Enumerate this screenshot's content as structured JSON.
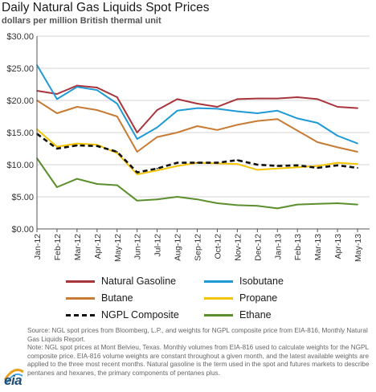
{
  "chart_data": {
    "type": "line",
    "title": "Daily Natural Gas Liquids Spot Prices",
    "subtitle": "dollars per million British thermal unit",
    "ylim": [
      0,
      30
    ],
    "yticks": [
      0,
      5,
      10,
      15,
      20,
      25,
      30
    ],
    "ytick_labels": [
      "$0.00",
      "$5.00",
      "$10.00",
      "$15.00",
      "$20.00",
      "$25.00",
      "$30.00"
    ],
    "categories": [
      "Jan-12",
      "Feb-12",
      "Mar-12",
      "Apr-12",
      "May-12",
      "Jun-12",
      "Jul-12",
      "Aug-12",
      "Sep-12",
      "Oct-12",
      "Nov-12",
      "Dec-12",
      "Jan-13",
      "Feb-13",
      "Mar-13",
      "Apr-13",
      "May-13"
    ],
    "x_end": 16.6,
    "grid": "horizontal",
    "legend_position": "bottom",
    "series": [
      {
        "name": "Natural Gasoline",
        "color": "#a8343c",
        "dash": false,
        "values": [
          21.5,
          21.0,
          22.3,
          22.0,
          20.5,
          15.0,
          18.5,
          20.2,
          19.5,
          19.0,
          20.2,
          20.3,
          20.3,
          20.5,
          20.2,
          19.0,
          18.8
        ]
      },
      {
        "name": "Isobutane",
        "color": "#1f9ad6",
        "dash": false,
        "values": [
          25.5,
          20.2,
          22.1,
          21.6,
          19.5,
          14.0,
          15.8,
          18.4,
          18.8,
          18.7,
          18.3,
          18.0,
          18.4,
          17.2,
          16.5,
          14.5,
          13.3
        ]
      },
      {
        "name": "Butane",
        "color": "#c87b34",
        "dash": false,
        "values": [
          20.0,
          18.0,
          19.0,
          18.5,
          17.5,
          12.0,
          14.3,
          15.0,
          16.0,
          15.4,
          16.2,
          16.8,
          17.1,
          15.3,
          13.5,
          12.7,
          12.0
        ]
      },
      {
        "name": "Propane",
        "color": "#f5c400",
        "dash": false,
        "values": [
          15.5,
          12.8,
          13.3,
          13.1,
          11.8,
          8.5,
          9.1,
          9.8,
          10.3,
          10.2,
          10.1,
          9.2,
          9.4,
          9.6,
          9.8,
          10.3,
          10.1
        ]
      },
      {
        "name": "NGPL Composite",
        "color": "#111111",
        "dash": true,
        "values": [
          14.8,
          12.5,
          13.0,
          12.9,
          12.0,
          8.8,
          9.4,
          10.3,
          10.3,
          10.3,
          10.7,
          10.0,
          9.8,
          9.9,
          9.5,
          9.9,
          9.5
        ]
      },
      {
        "name": "Ethane",
        "color": "#5b8f2e",
        "dash": false,
        "values": [
          11.0,
          6.5,
          7.8,
          7.0,
          6.8,
          4.4,
          4.6,
          5.0,
          4.6,
          4.0,
          3.7,
          3.6,
          3.2,
          3.8,
          3.9,
          4.0,
          3.8
        ]
      }
    ]
  },
  "legend": {
    "items": [
      "Natural Gasoline",
      "Isobutane",
      "Butane",
      "Propane",
      "NGPL Composite",
      "Ethane"
    ]
  },
  "footer": {
    "source_line1": "Source:  NGL spot prices from Bloomberg, L.P., and weights for NGPL composite price from EIA-816, Monthly Natural Gas Liquids Report.",
    "source_line2": "Note: NGL spot prices at Mont Belvieu, Texas.  Monthly volumes from EIA-816 used to calculate weights for the NGPL composite price.  EIA-816 volume weights are constant throughout a given month, and the latest available weights are applied to the three most recent months. Natural gasoline is the term used in the spot and futures markets to describe pentanes and hexanes, the primary components of pentanes plus.",
    "logo_text": "eia"
  }
}
